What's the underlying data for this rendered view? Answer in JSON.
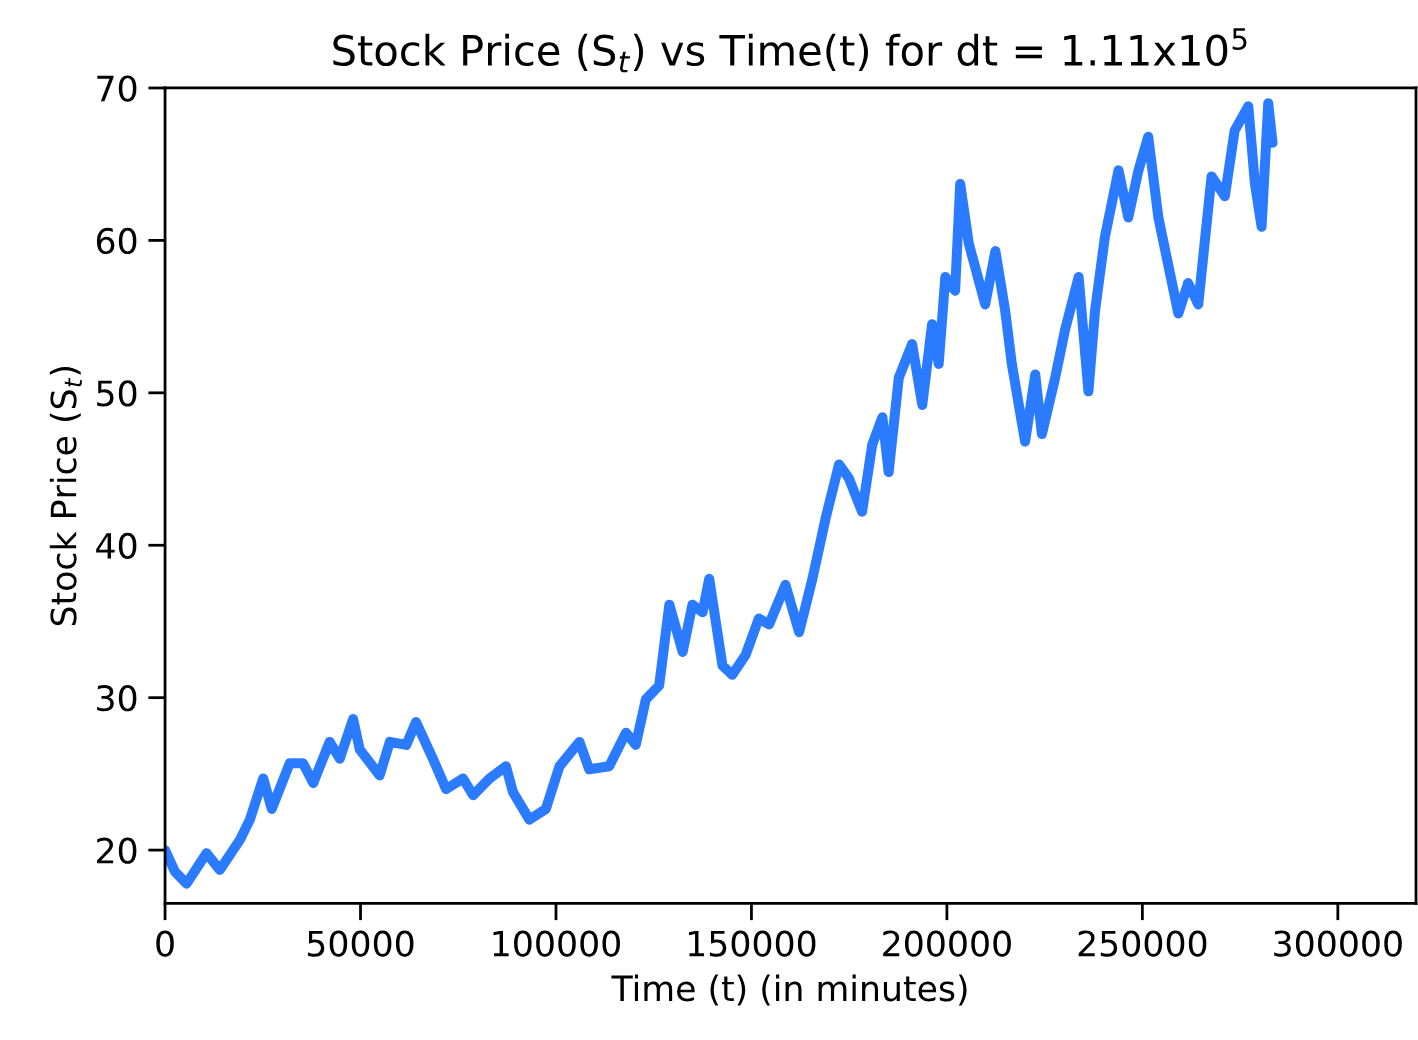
{
  "chart_data": {
    "type": "line",
    "title": "Stock Price (S$_{t}$) vs Time(t) for dt = 1.11x10$^{5}$",
    "xlabel": "Time (t) (in minutes)",
    "ylabel": "Stock Price (S$_{t}$)",
    "xlim": [
      0,
      320000
    ],
    "xticks": [
      0,
      50000,
      100000,
      150000,
      200000,
      250000,
      300000
    ],
    "ylim": [
      16.5,
      70
    ],
    "yticks": [
      20,
      30,
      40,
      50,
      60,
      70
    ],
    "line_style": "solid",
    "series": [
      {
        "color": "#2a7bff",
        "x": [
          0,
          2500,
          5500,
          10600,
          14000,
          19200,
          21700,
          25100,
          27300,
          31900,
          35300,
          37900,
          42100,
          44700,
          48100,
          49800,
          54900,
          57500,
          61700,
          64200,
          68500,
          71900,
          76200,
          78800,
          83000,
          87200,
          89000,
          93200,
          97400,
          100900,
          106000,
          108500,
          113600,
          117900,
          120400,
          123000,
          126400,
          129000,
          132400,
          134900,
          137500,
          139200,
          142600,
          145100,
          148500,
          151900,
          154500,
          158700,
          162200,
          165600,
          169000,
          172400,
          174900,
          178300,
          180900,
          183500,
          185100,
          187700,
          191100,
          193700,
          196200,
          197900,
          199600,
          202100,
          203400,
          205600,
          209800,
          212400,
          214900,
          216600,
          220000,
          222600,
          224300,
          227700,
          230200,
          233700,
          236200,
          237900,
          240400,
          243900,
          246400,
          249000,
          251500,
          254100,
          259200,
          261700,
          264300,
          267700,
          271100,
          273600,
          277100,
          278800,
          280500,
          282200,
          283300
        ],
        "values": [
          20.0,
          18.6,
          17.8,
          19.8,
          18.7,
          20.7,
          22.0,
          24.7,
          22.7,
          25.7,
          25.7,
          24.4,
          27.1,
          26.0,
          28.6,
          26.6,
          24.9,
          27.1,
          26.9,
          28.4,
          26.0,
          24.0,
          24.7,
          23.6,
          24.7,
          25.5,
          23.8,
          22.0,
          22.7,
          25.5,
          27.1,
          25.3,
          25.5,
          27.7,
          26.9,
          29.9,
          30.8,
          36.1,
          33.0,
          36.1,
          35.6,
          37.8,
          32.1,
          31.5,
          32.8,
          35.2,
          34.8,
          37.4,
          34.3,
          37.8,
          41.8,
          45.3,
          44.4,
          42.2,
          46.6,
          48.4,
          44.8,
          51.0,
          53.2,
          49.2,
          54.5,
          51.9,
          57.6,
          56.7,
          63.7,
          59.8,
          55.8,
          59.3,
          55.4,
          51.9,
          46.8,
          51.2,
          47.3,
          51.0,
          54.1,
          57.6,
          50.1,
          55.4,
          60.2,
          64.6,
          61.5,
          64.6,
          66.8,
          61.5,
          55.2,
          57.2,
          55.8,
          64.2,
          62.9,
          67.2,
          68.8,
          63.7,
          60.9,
          69.0,
          66.4
        ]
      }
    ]
  }
}
